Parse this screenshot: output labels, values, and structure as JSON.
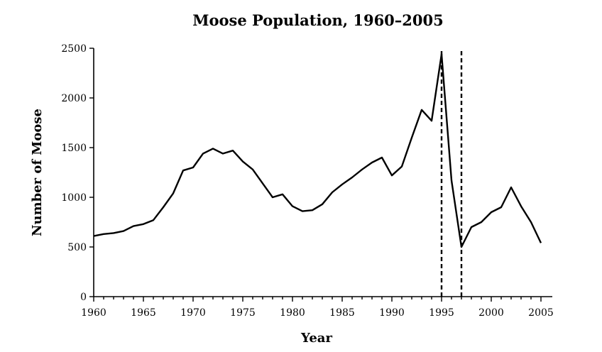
{
  "chart_data": {
    "type": "line",
    "title": "Moose Population, 1960–2005",
    "xlabel": "Year",
    "ylabel": "Number of Moose",
    "xlim": [
      1960,
      2006
    ],
    "ylim": [
      0,
      2500
    ],
    "xticks": [
      1960,
      1965,
      1970,
      1975,
      1980,
      1985,
      1990,
      1995,
      2000,
      2005
    ],
    "yticks": [
      0,
      500,
      1000,
      1500,
      2000,
      2500
    ],
    "grid": false,
    "reference_lines_x": [
      1995,
      1997
    ],
    "series": [
      {
        "x": [
          1960,
          1961,
          1962,
          1963,
          1964,
          1965,
          1966,
          1967,
          1968,
          1969,
          1970,
          1971,
          1972,
          1973,
          1974,
          1975,
          1976,
          1977,
          1978,
          1979,
          1980,
          1981,
          1982,
          1983,
          1984,
          1985,
          1986,
          1987,
          1988,
          1989,
          1990,
          1991,
          1992,
          1993,
          1994,
          1995,
          1996,
          1997,
          1998,
          1999,
          2000,
          2001,
          2002,
          2003,
          2004,
          2005
        ],
        "y": [
          610,
          630,
          640,
          660,
          710,
          730,
          770,
          900,
          1040,
          1270,
          1300,
          1440,
          1490,
          1440,
          1470,
          1360,
          1280,
          1140,
          1000,
          1030,
          910,
          860,
          870,
          930,
          1050,
          1130,
          1200,
          1280,
          1350,
          1400,
          1220,
          1310,
          1600,
          1880,
          1770,
          2440,
          1170,
          500,
          700,
          750,
          850,
          900,
          1100,
          910,
          750,
          540
        ]
      }
    ]
  }
}
